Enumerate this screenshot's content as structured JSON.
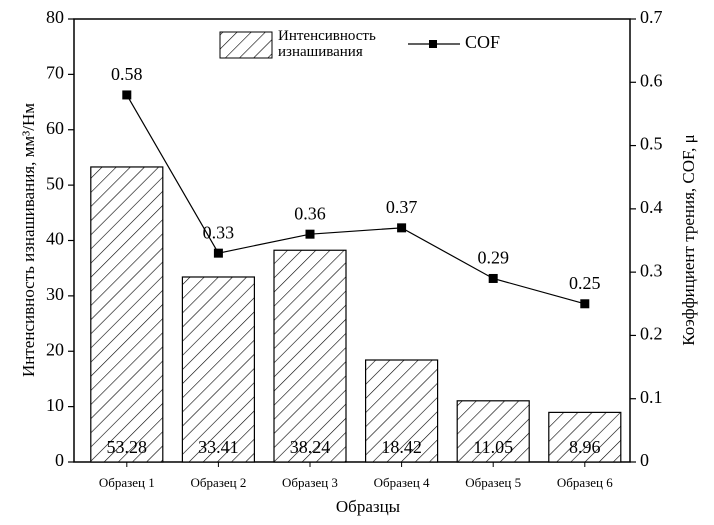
{
  "chart_data": {
    "type": "bar-line",
    "categories": [
      "Образец 1",
      "Образец 2",
      "Образец 3",
      "Образец 4",
      "Образец 5",
      "Образец 6"
    ],
    "x_label": "Образцы",
    "y_label": "Интенсивность изнашивания, мм³/Нм",
    "y2_label": "Коэффициент трения, COF, μ",
    "series": [
      {
        "name": "Интенсивность изнашивания",
        "type": "bar",
        "color": "#000000",
        "values": [
          53.28,
          33.41,
          38.24,
          18.42,
          11.05,
          8.96
        ]
      },
      {
        "name": "COF",
        "type": "line",
        "axis": "y2",
        "color": "#000000",
        "values": [
          0.58,
          0.33,
          0.36,
          0.37,
          0.29,
          0.25
        ]
      }
    ],
    "ylim": [
      0,
      80
    ],
    "yticks": [
      0,
      10,
      20,
      30,
      40,
      50,
      60,
      70,
      80
    ],
    "y2lim": [
      0,
      0.7
    ],
    "y2ticks": [
      0,
      0.1,
      0.2,
      0.3,
      0.4,
      0.5,
      0.6,
      0.7
    ]
  }
}
